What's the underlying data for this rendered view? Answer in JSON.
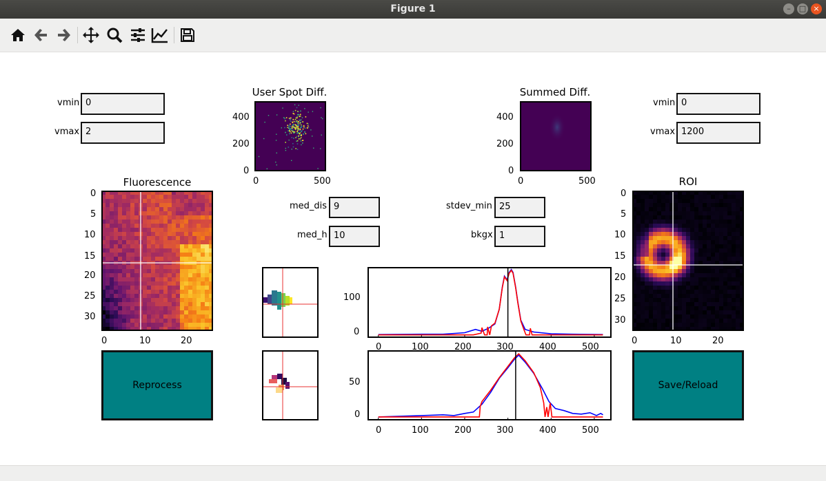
{
  "window": {
    "title": "Figure 1"
  },
  "toolbar": {
    "buttons": [
      "home-icon",
      "back-arrow-icon",
      "forward-arrow-icon",
      "pan-icon",
      "zoom-icon",
      "configure-subplots-icon",
      "edit-axes-icon",
      "save-icon"
    ]
  },
  "left_controls": {
    "vmin_label": "vmin",
    "vmin_value": "0",
    "vmax_label": "vmax",
    "vmax_value": "2"
  },
  "right_controls": {
    "vmin_label": "vmin",
    "vmin_value": "0",
    "vmax_label": "vmax",
    "vmax_value": "1200"
  },
  "mid_controls": {
    "med_dis_label": "med_dis",
    "med_dis_value": "9",
    "med_h_label": "med_h",
    "med_h_value": "10",
    "stdev_min_label": "stdev_min",
    "stdev_min_value": "25",
    "bkgx_label": "bkgx",
    "bkgx_value": "1"
  },
  "buttons": {
    "reprocess": "Reprocess",
    "save_reload": "Save/Reload"
  },
  "chart_data": [
    {
      "type": "heatmap",
      "title": "User Spot Diff.",
      "x_ticks": [
        "0",
        "500"
      ],
      "y_ticks": [
        "0",
        "200",
        "400"
      ],
      "colormap": "viridis"
    },
    {
      "type": "heatmap",
      "title": "Summed Diff.",
      "x_ticks": [
        "0",
        "500"
      ],
      "y_ticks": [
        "0",
        "200",
        "400"
      ],
      "colormap": "viridis"
    },
    {
      "type": "heatmap",
      "title": "Fluorescence",
      "x_ticks": [
        "0",
        "10",
        "20"
      ],
      "y_ticks": [
        "0",
        "5",
        "10",
        "15",
        "20",
        "25",
        "30"
      ],
      "colormap": "inferno",
      "crosshair": {
        "x": 9,
        "y": 17
      }
    },
    {
      "type": "heatmap",
      "title": "ROI",
      "x_ticks": [
        "0",
        "10",
        "20"
      ],
      "y_ticks": [
        "0",
        "5",
        "10",
        "15",
        "20",
        "25",
        "30"
      ],
      "colormap": "inferno",
      "crosshair": {
        "x": 9,
        "y": 17
      }
    },
    {
      "type": "line",
      "title": "",
      "x_ticks": [
        "0",
        "100",
        "200",
        "300",
        "400",
        "500"
      ],
      "y_ticks": [
        "0",
        "100"
      ],
      "xlim": [
        -25,
        540
      ],
      "ylim": [
        -8,
        185
      ],
      "vline": 300,
      "series": [
        {
          "color": "#0000ff",
          "points": [
            [
              0,
              1
            ],
            [
              100,
              2
            ],
            [
              150,
              2
            ],
            [
              200,
              6
            ],
            [
              225,
              15
            ],
            [
              240,
              10
            ],
            [
              255,
              18
            ],
            [
              270,
              30
            ],
            [
              280,
              70
            ],
            [
              287,
              130
            ],
            [
              292,
              160
            ],
            [
              298,
              150
            ],
            [
              303,
              170
            ],
            [
              308,
              178
            ],
            [
              312,
              170
            ],
            [
              318,
              130
            ],
            [
              323,
              90
            ],
            [
              330,
              40
            ],
            [
              340,
              15
            ],
            [
              360,
              8
            ],
            [
              400,
              3
            ],
            [
              450,
              2
            ],
            [
              520,
              1
            ]
          ]
        },
        {
          "color": "#ff0000",
          "points": [
            [
              0,
              0
            ],
            [
              200,
              0
            ],
            [
              220,
              0
            ],
            [
              238,
              5
            ],
            [
              240,
              20
            ],
            [
              246,
              0
            ],
            [
              252,
              0
            ],
            [
              253,
              22
            ],
            [
              258,
              0
            ],
            [
              262,
              25
            ],
            [
              270,
              32
            ],
            [
              280,
              70
            ],
            [
              287,
              128
            ],
            [
              292,
              158
            ],
            [
              298,
              148
            ],
            [
              303,
              168
            ],
            [
              308,
              176
            ],
            [
              312,
              168
            ],
            [
              318,
              128
            ],
            [
              323,
              88
            ],
            [
              330,
              38
            ],
            [
              338,
              12
            ],
            [
              342,
              0
            ],
            [
              350,
              0
            ],
            [
              352,
              18
            ],
            [
              356,
              0
            ],
            [
              380,
              0
            ],
            [
              520,
              0
            ]
          ]
        }
      ]
    },
    {
      "type": "line",
      "title": "",
      "x_ticks": [
        "0",
        "100",
        "200",
        "300",
        "400",
        "500"
      ],
      "y_ticks": [
        "0",
        "50"
      ],
      "xlim": [
        -25,
        540
      ],
      "ylim": [
        -5,
        95
      ],
      "vline": 318,
      "series": [
        {
          "color": "#0000ff",
          "points": [
            [
              0,
              0
            ],
            [
              50,
              1
            ],
            [
              100,
              2
            ],
            [
              150,
              3
            ],
            [
              175,
              2
            ],
            [
              200,
              5
            ],
            [
              220,
              7
            ],
            [
              240,
              18
            ],
            [
              260,
              35
            ],
            [
              280,
              55
            ],
            [
              300,
              70
            ],
            [
              315,
              82
            ],
            [
              325,
              88
            ],
            [
              340,
              78
            ],
            [
              360,
              62
            ],
            [
              380,
              40
            ],
            [
              395,
              22
            ],
            [
              410,
              12
            ],
            [
              430,
              9
            ],
            [
              450,
              5
            ],
            [
              470,
              4
            ],
            [
              490,
              6
            ],
            [
              505,
              2
            ],
            [
              515,
              5
            ],
            [
              520,
              3
            ]
          ]
        },
        {
          "color": "#ff0000",
          "points": [
            [
              0,
              0
            ],
            [
              200,
              0
            ],
            [
              234,
              0
            ],
            [
              236,
              15
            ],
            [
              240,
              22
            ],
            [
              260,
              38
            ],
            [
              280,
              56
            ],
            [
              300,
              72
            ],
            [
              315,
              84
            ],
            [
              325,
              90
            ],
            [
              340,
              80
            ],
            [
              360,
              63
            ],
            [
              375,
              42
            ],
            [
              383,
              20
            ],
            [
              386,
              0
            ],
            [
              390,
              14
            ],
            [
              393,
              0
            ],
            [
              398,
              20
            ],
            [
              402,
              0
            ],
            [
              520,
              0
            ]
          ]
        }
      ]
    }
  ]
}
